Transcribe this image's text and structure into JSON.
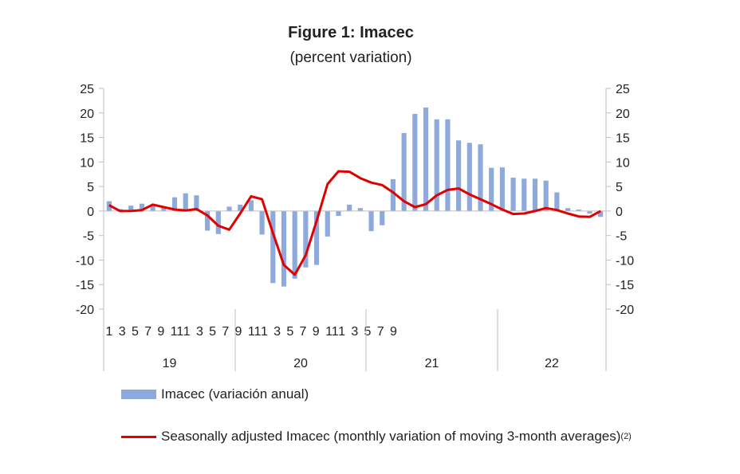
{
  "chart_data": {
    "type": "bar+line",
    "title": "Figure 1: Imacec",
    "subtitle": "(percent variation)",
    "ylim": [
      -20,
      25
    ],
    "y_ticks": [
      25,
      20,
      15,
      10,
      5,
      0,
      -5,
      -10,
      -15,
      -20
    ],
    "month_labels": [
      "1",
      "3",
      "5",
      "7",
      "9",
      "11",
      "1",
      "3",
      "5",
      "7",
      "9",
      "11",
      "1",
      "3",
      "5",
      "7",
      "9",
      "11",
      "1",
      "3",
      "5",
      "7",
      "9"
    ],
    "years": [
      "19",
      "20",
      "21",
      "22"
    ],
    "series": [
      {
        "name": "Imacec (variación anual)",
        "type": "bar",
        "color": "#8EA9DB",
        "values": [
          2.0,
          0.4,
          1.1,
          1.5,
          1.3,
          0.8,
          2.8,
          3.6,
          3.2,
          -4.0,
          -4.7,
          0.9,
          1.3,
          2.2,
          -4.8,
          -14.7,
          -15.4,
          -13.8,
          -11.5,
          -11.0,
          -5.2,
          -1.0,
          1.3,
          0.6,
          -4.1,
          -2.9,
          6.5,
          15.9,
          19.8,
          21.1,
          18.7,
          18.7,
          14.4,
          13.9,
          13.6,
          8.8,
          8.9,
          6.8,
          6.6,
          6.6,
          6.2,
          3.8,
          0.6,
          0.3,
          -0.5,
          -1.2
        ]
      },
      {
        "name": "Seasonally adjusted Imacec (monthly variation of moving 3-month averages)",
        "name_sup": "(2)",
        "type": "line",
        "color": "#e00000",
        "values": [
          1.2,
          0.0,
          0.0,
          0.2,
          1.3,
          0.8,
          0.3,
          0.1,
          0.4,
          -0.9,
          -3.0,
          -3.8,
          -0.5,
          3.0,
          2.4,
          -4.5,
          -11.0,
          -13.0,
          -9.0,
          -2.0,
          5.5,
          8.1,
          8.0,
          6.7,
          5.8,
          5.3,
          3.8,
          2.0,
          0.8,
          1.4,
          3.2,
          4.3,
          4.6,
          3.4,
          2.4,
          1.4,
          0.3,
          -0.6,
          -0.5,
          0.0,
          0.6,
          0.2,
          -0.5,
          -1.1,
          -1.2,
          0.0
        ]
      }
    ],
    "grid": false,
    "legend_position": "bottom"
  }
}
